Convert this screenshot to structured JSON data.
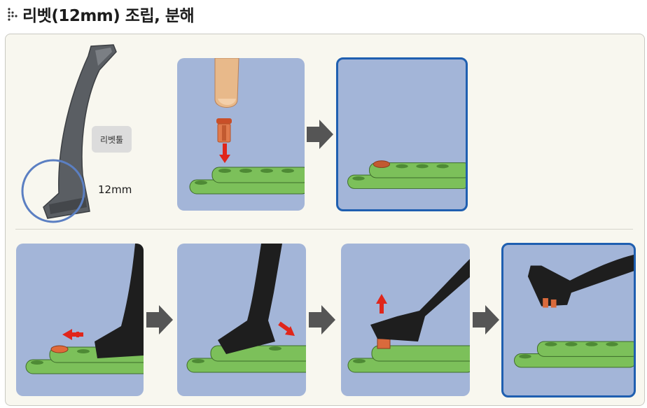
{
  "header": {
    "title": "리벳(12mm) 조립, 분해",
    "title_icon": "dotted-bullet-icon"
  },
  "tool": {
    "name_label": "리벳툴",
    "size_label": "12mm"
  },
  "colors": {
    "panel_bg": "#a3b5d8",
    "highlight_border": "#1f5fb0",
    "beam_green": "#7cc05a",
    "rivet_orange": "#d96a3c",
    "red_arrow": "#e0261b",
    "tool_black": "#1e1e1e",
    "card_bg": "#f8f7ef"
  },
  "steps": [
    {
      "row": "assembly",
      "icon": "finger-press-rivet-icon"
    },
    {
      "row": "assembly",
      "icon": "rivet-inserted-icon"
    },
    {
      "row": "disassembly",
      "icon": "tool-slide-left-icon"
    },
    {
      "row": "disassembly",
      "icon": "tool-push-right-icon"
    },
    {
      "row": "disassembly",
      "icon": "tool-lift-up-icon"
    },
    {
      "row": "disassembly",
      "icon": "rivet-removed-icon"
    }
  ]
}
